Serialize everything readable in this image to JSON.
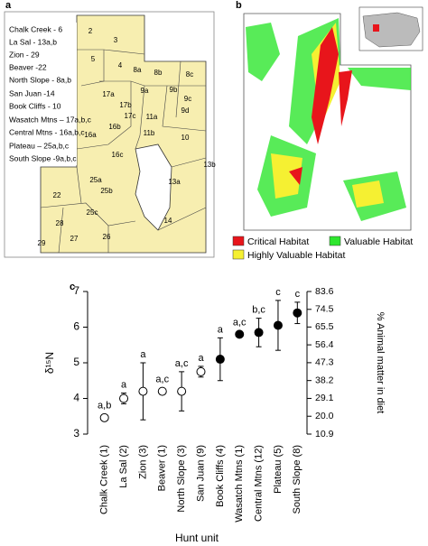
{
  "panel_a": {
    "label": "a",
    "legend": [
      "Chalk Creek - 6",
      "La Sal - 13a,b",
      "Zion - 29",
      "Beaver -22",
      "North Slope - 8a,b",
      "San Juan -14",
      "Book Cliffs - 10",
      "Wasatch Mtns – 17a,b,c",
      "Central  Mtns - 16a,b,c",
      "Plateau – 25a,b,c",
      "South Slope -9a,b,c"
    ],
    "units": [
      "2",
      "3",
      "5",
      "4",
      "8a",
      "8b",
      "8c",
      "9a",
      "9b",
      "9c",
      "9d",
      "17a",
      "17b",
      "17c",
      "11a",
      "11b",
      "10",
      "16a",
      "16b",
      "16c",
      "13a",
      "13b",
      "25a",
      "25b",
      "25c",
      "22",
      "28",
      "29",
      "27",
      "26",
      "14"
    ]
  },
  "panel_b": {
    "label": "b",
    "legend": [
      {
        "name": "Critical Habitat",
        "color": "#e8151b"
      },
      {
        "name": "Valuable Habitat",
        "color": "#2ee62e"
      },
      {
        "name": "Highly Valuable Habitat",
        "color": "#f5f032"
      }
    ]
  },
  "chart_data": {
    "type": "errorbar",
    "panel_label": "c",
    "y_label": "δ¹⁵N",
    "y2_label": "% Animal matter in diet",
    "x_label": "Hunt unit",
    "categories": [
      "Chalk Creek (1)",
      "La Sal (2)",
      "Zion (3)",
      "Beaver (1)",
      "North Slope (3)",
      "San Juan (9)",
      "Book Cliffs (4)",
      "Wasatch Mtns (1)",
      "Central  Mtns (12)",
      "Plateau (5)",
      "South Slope (8)"
    ],
    "values": [
      3.46,
      4.0,
      4.2,
      4.2,
      4.2,
      4.75,
      5.1,
      5.8,
      5.85,
      6.05,
      6.4
    ],
    "errors": [
      null,
      0.15,
      0.8,
      null,
      0.55,
      0.15,
      0.6,
      null,
      0.4,
      0.7,
      0.3
    ],
    "markers": [
      "open",
      "open",
      "open",
      "open",
      "open",
      "open",
      "filled",
      "filled",
      "filled",
      "filled",
      "filled"
    ],
    "letters": [
      "a,b",
      "a",
      "a",
      "a,c",
      "a,c",
      "a",
      "a",
      "a,c",
      "b,c",
      "c",
      "c"
    ],
    "ylim": [
      3,
      7
    ],
    "yticks": [
      3,
      4,
      5,
      6,
      7
    ],
    "y2lim": [
      10.9,
      83.6
    ],
    "y2ticks": [
      10.9,
      {
        "value": 20,
        "label": "20.0"
      },
      29.1,
      38.2,
      47.3,
      56.4,
      65.5,
      74.5,
      83.6
    ]
  }
}
